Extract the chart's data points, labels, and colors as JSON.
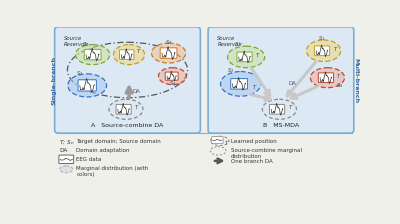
{
  "bg_color": "#f0f0eb",
  "panel_bg": "#dce9f5",
  "panel_border": "#7aaed4",
  "title_left": "A   Source-combine DA",
  "title_right": "B   MS-MDA",
  "label_single": "Single-branch",
  "label_multi": "Multi-branch",
  "colors": {
    "green_fill": "#c8e0a0",
    "green_edge": "#80a830",
    "yellow_fill": "#f0d880",
    "yellow_edge": "#c0a020",
    "orange_fill": "#f0c090",
    "orange_edge": "#d07828",
    "red_fill": "#f0b0a0",
    "red_edge": "#c04830",
    "blue_fill": "#a8c8f0",
    "blue_edge": "#3870c0",
    "gray_edge": "#909090",
    "text_dark": "#222222",
    "text_med": "#444444",
    "arrow_color": "#c0c0c0",
    "da_arrow": "#b0b0b0"
  }
}
